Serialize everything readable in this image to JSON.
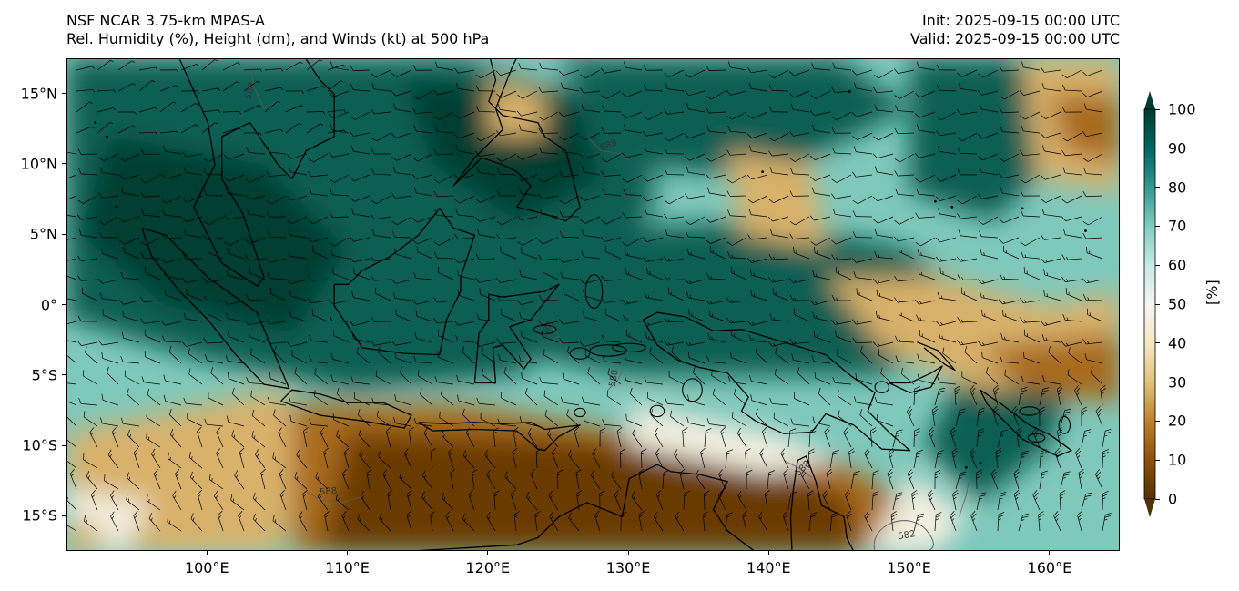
{
  "header": {
    "model_line": "NSF NCAR 3.75-km MPAS-A",
    "field_line": "Rel. Humidity (%), Height (dm), and Winds (kt) at 500 hPa",
    "init_line": "Init: 2025-09-15 00:00 UTC",
    "valid_line": "Valid: 2025-09-15 00:00 UTC"
  },
  "map": {
    "region": "Maritime Continent / Indonesia",
    "lon_range": [
      90,
      165
    ],
    "lat_range": [
      -17.5,
      17.5
    ],
    "lat_ticks": [
      {
        "value": 15,
        "label": "15°N"
      },
      {
        "value": 10,
        "label": "10°N"
      },
      {
        "value": 5,
        "label": "5°N"
      },
      {
        "value": 0,
        "label": "0°"
      },
      {
        "value": -5,
        "label": "5°S"
      },
      {
        "value": -10,
        "label": "10°S"
      },
      {
        "value": -15,
        "label": "15°S"
      }
    ],
    "lon_ticks": [
      {
        "value": 100,
        "label": "100°E"
      },
      {
        "value": 110,
        "label": "110°E"
      },
      {
        "value": 120,
        "label": "120°E"
      },
      {
        "value": 130,
        "label": "130°E"
      },
      {
        "value": 140,
        "label": "140°E"
      },
      {
        "value": 150,
        "label": "150°E"
      },
      {
        "value": 160,
        "label": "160°E"
      }
    ],
    "contour_labels": [
      "588",
      "588",
      "588",
      "588",
      "588",
      "588",
      "582"
    ],
    "colors": {
      "very_dry": "#6b3a05",
      "dry": "#a86a1f",
      "medium_dry": "#d8b16a",
      "neutral": "#f3efe0",
      "moist": "#7fc8bc",
      "very_moist": "#0b5e52",
      "saturated": "#003c30"
    }
  },
  "colorbar": {
    "unit_label": "[%]",
    "ticks": [
      "0",
      "10",
      "20",
      "30",
      "40",
      "50",
      "60",
      "70",
      "80",
      "90",
      "100"
    ],
    "gradient": [
      "#543005",
      "#8c510a",
      "#bf812d",
      "#dfc27d",
      "#f6e8c3",
      "#f5f5f5",
      "#c7eae5",
      "#80cdc1",
      "#35978f",
      "#01665e",
      "#003c30"
    ]
  }
}
